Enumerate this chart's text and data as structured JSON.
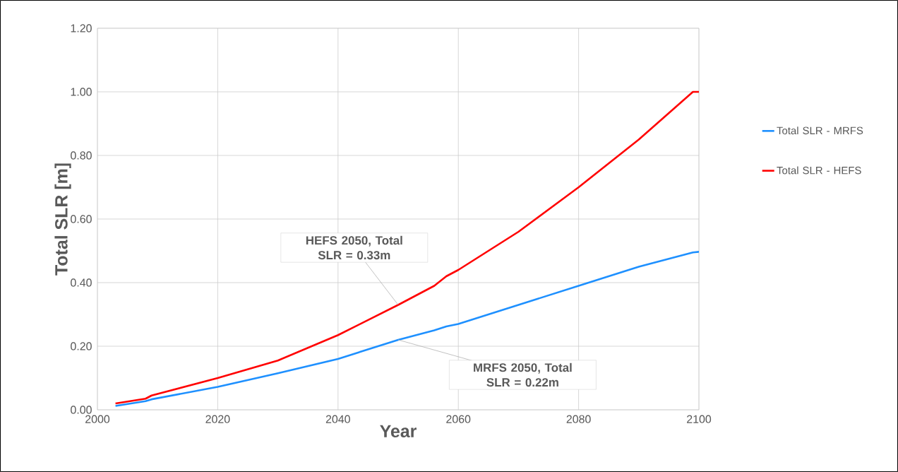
{
  "chart_data": {
    "type": "line",
    "xlabel": "Year",
    "ylabel": "Total SLR [m]",
    "x": [
      2003,
      2008,
      2009,
      2020,
      2030,
      2040,
      2050,
      2056,
      2058,
      2060,
      2070,
      2080,
      2090,
      2099,
      2100
    ],
    "series": [
      {
        "name": "Total SLR - MRFS",
        "color": "#1e90ff",
        "values": [
          0.012,
          0.027,
          0.033,
          0.072,
          0.115,
          0.16,
          0.22,
          0.25,
          0.262,
          0.27,
          0.33,
          0.39,
          0.45,
          0.495,
          0.497
        ]
      },
      {
        "name": "Total SLR - HEFS",
        "color": "#ff0000",
        "values": [
          0.02,
          0.035,
          0.045,
          0.1,
          0.155,
          0.235,
          0.33,
          0.39,
          0.42,
          0.44,
          0.56,
          0.7,
          0.85,
          1.0,
          1.0
        ]
      }
    ],
    "xlim": [
      2000,
      2100
    ],
    "ylim": [
      0,
      1.2
    ],
    "xticks": [
      2000,
      2020,
      2040,
      2060,
      2080,
      2100
    ],
    "yticks": [
      {
        "value": 0,
        "label": "0.00"
      },
      {
        "value": 0.2,
        "label": "0.20"
      },
      {
        "value": 0.4,
        "label": "0.40"
      },
      {
        "value": 0.6,
        "label": "0.60"
      },
      {
        "value": 0.8,
        "label": "0.80"
      },
      {
        "value": 1.0,
        "label": "1.00"
      },
      {
        "value": 1.2,
        "label": "1.20"
      }
    ],
    "grid": true,
    "legend": "right",
    "marker": "none",
    "line_style": "solid",
    "annotations": [
      {
        "text": "HEFS 2050, Total SLR = 0.33m",
        "x": 2050,
        "y": 0.33
      },
      {
        "text": "MRFS 2050, Total SLR = 0.22m",
        "x": 2050,
        "y": 0.22
      }
    ]
  }
}
